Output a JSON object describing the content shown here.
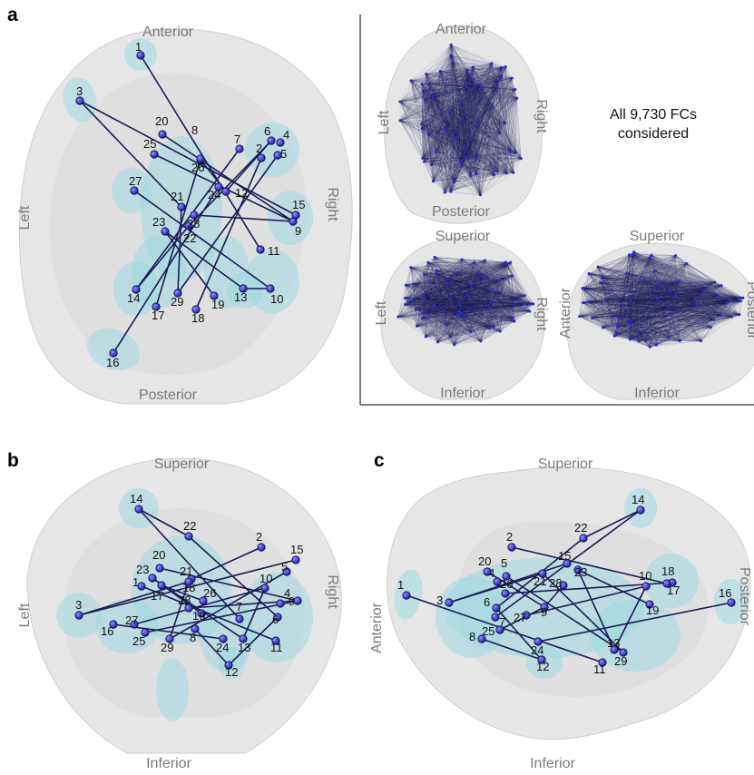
{
  "panels": {
    "a": {
      "letter": "a",
      "anterior": "Anterior",
      "posterior": "Posterior",
      "left": "Left",
      "right": "Right"
    },
    "inset": {
      "top": {
        "anterior": "Anterior",
        "posterior": "Posterior",
        "left": "Left",
        "right": "Right"
      },
      "coronal": {
        "superior": "Superior",
        "inferior": "Inferior",
        "left": "Left",
        "right": "Right"
      },
      "sagittal": {
        "superior": "Superior",
        "inferior": "Inferior",
        "anterior": "Anterior",
        "posterior": "Posterior"
      },
      "note_line1": "All 9,730 FCs",
      "note_line2": "considered"
    },
    "b": {
      "letter": "b",
      "superior": "Superior",
      "inferior": "Inferior",
      "left": "Left",
      "right": "Right"
    },
    "c": {
      "letter": "c",
      "superior": "Superior",
      "inferior": "Inferior",
      "anterior": "Anterior",
      "posterior": "Posterior"
    }
  },
  "colors": {
    "edge": "#1a1a55",
    "node": "#2a2ad0",
    "halo": "#9fd8e2",
    "brain": "#e6e6e6",
    "direction_text": "#7a7a7a"
  },
  "node_labels": [
    "1",
    "2",
    "3",
    "4",
    "5",
    "6",
    "7",
    "8",
    "9",
    "10",
    "11",
    "12",
    "13",
    "14",
    "15",
    "16",
    "17",
    "18",
    "19",
    "20",
    "21",
    "22",
    "23",
    "24",
    "25",
    "26",
    "27",
    "28",
    "29"
  ]
}
